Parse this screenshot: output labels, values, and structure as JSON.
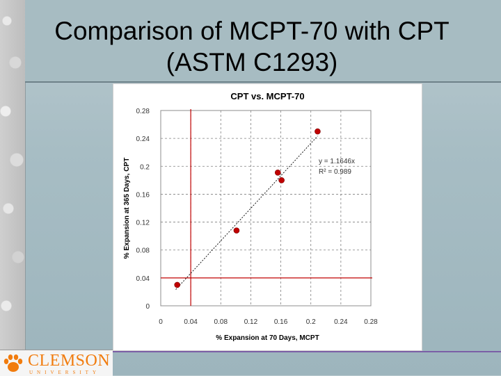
{
  "slide": {
    "title_line1": "Comparison of MCPT-70 with CPT",
    "title_line2": "(ASTM C1293)"
  },
  "logo": {
    "name": "CLEMSON",
    "sub": "UNIVERSITY"
  },
  "colors": {
    "point": "#c00000",
    "limit_line": "#c00000",
    "trend": "#000000",
    "grid": "#7f7f7f",
    "accent": "#f17c0e"
  },
  "chart_data": {
    "type": "scatter",
    "title": "CPT vs. MCPT-70",
    "xlabel": "% Expansion at 70 Days, MCPT",
    "ylabel": "% Expansion at 365 Days, CPT",
    "xlim": [
      0,
      0.28
    ],
    "ylim": [
      0,
      0.28
    ],
    "xticks": [
      "0",
      "0.04",
      "0.08",
      "0.12",
      "0.16",
      "0.2",
      "0.24",
      "0.28"
    ],
    "yticks": [
      "0",
      "0.04",
      "0.08",
      "0.12",
      "0.16",
      "0.2",
      "0.24",
      "0.28"
    ],
    "grid": true,
    "points": [
      {
        "x": 0.022,
        "y": 0.03
      },
      {
        "x": 0.101,
        "y": 0.108
      },
      {
        "x": 0.156,
        "y": 0.191
      },
      {
        "x": 0.161,
        "y": 0.18
      },
      {
        "x": 0.209,
        "y": 0.25
      }
    ],
    "trendline": {
      "slope": 1.1646,
      "x_range": [
        0.02,
        0.209
      ]
    },
    "limit_lines": {
      "x": 0.04,
      "y": 0.04
    },
    "equation": "y = 1.1646x",
    "r2": "R² = 0.989"
  }
}
